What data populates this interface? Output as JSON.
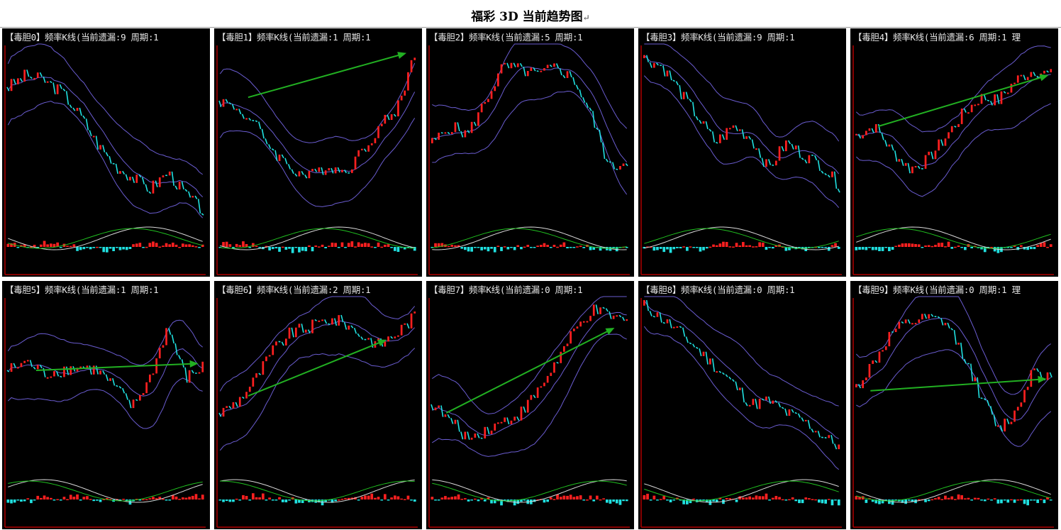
{
  "page": {
    "title": "福彩 3D 当前趋势图",
    "return_mark": "↵"
  },
  "colors": {
    "background": "#000000",
    "axis": "#b00000",
    "candle_up": "#ff2020",
    "candle_down": "#20e0e0",
    "bollinger": "#6a5cd0",
    "trend_arrow": "#22b022",
    "macd_line_white": "#d8d8d8",
    "macd_line_green": "#20c020"
  },
  "chart_data": [
    {
      "type": "candlestick",
      "label": "【毒胆0】频率K线(当前遗漏:9 周期:1",
      "trend": [
        0.78,
        0.85,
        0.82,
        0.75,
        0.62,
        0.45,
        0.32,
        0.25,
        0.18,
        0.28,
        0.15,
        0.05
      ],
      "arrow": null
    },
    {
      "type": "candlestick",
      "label": "【毒胆1】频率K线(当前遗漏:1 周期:1",
      "trend": [
        0.7,
        0.65,
        0.55,
        0.4,
        0.3,
        0.25,
        0.32,
        0.28,
        0.4,
        0.55,
        0.65,
        0.98
      ],
      "arrow": [
        0.15,
        0.72,
        0.95,
        0.98
      ]
    },
    {
      "type": "candlestick",
      "label": "【毒胆2】频率K线(当前遗漏:5 周期:1",
      "trend": [
        0.45,
        0.55,
        0.5,
        0.7,
        0.9,
        0.88,
        0.85,
        0.9,
        0.82,
        0.6,
        0.3,
        0.35
      ],
      "arrow": null
    },
    {
      "type": "candlestick",
      "label": "【毒胆3】频率K线(当前遗漏:9 周期:1",
      "trend": [
        0.95,
        0.9,
        0.75,
        0.6,
        0.45,
        0.55,
        0.48,
        0.3,
        0.45,
        0.38,
        0.32,
        0.2
      ],
      "arrow": null
    },
    {
      "type": "candlestick",
      "label": "【毒胆4】频率K线(当前遗漏:6 周期:1 理",
      "trend": [
        0.5,
        0.55,
        0.4,
        0.3,
        0.35,
        0.48,
        0.62,
        0.72,
        0.7,
        0.82,
        0.88,
        0.85
      ],
      "arrow": [
        0.12,
        0.55,
        0.98,
        0.85
      ]
    },
    {
      "type": "candlestick",
      "label": "【毒胆5】频率K线(当前遗漏:1 周期:1",
      "trend": [
        0.6,
        0.65,
        0.58,
        0.6,
        0.62,
        0.6,
        0.5,
        0.38,
        0.55,
        0.85,
        0.55,
        0.62
      ],
      "arrow": [
        0.15,
        0.6,
        0.97,
        0.64
      ]
    },
    {
      "type": "candlestick",
      "label": "【毒胆6】频率K线(当前遗漏:2 周期:1",
      "trend": [
        0.35,
        0.42,
        0.55,
        0.72,
        0.82,
        0.85,
        0.9,
        0.88,
        0.8,
        0.75,
        0.82,
        0.92
      ],
      "arrow": [
        0.15,
        0.45,
        0.85,
        0.78
      ]
    },
    {
      "type": "candlestick",
      "label": "【毒胆7】频率K线(当前遗漏:0 周期:1",
      "trend": [
        0.4,
        0.3,
        0.2,
        0.25,
        0.3,
        0.35,
        0.48,
        0.65,
        0.82,
        0.95,
        0.92,
        0.88
      ],
      "arrow": [
        0.08,
        0.35,
        0.93,
        0.85
      ]
    },
    {
      "type": "candlestick",
      "label": "【毒胆8】频率K线(当前遗漏:0 周期:1",
      "trend": [
        0.98,
        0.9,
        0.82,
        0.72,
        0.62,
        0.52,
        0.4,
        0.42,
        0.35,
        0.3,
        0.22,
        0.15
      ],
      "arrow": null
    },
    {
      "type": "candlestick",
      "label": "【毒胆9】频率K线(当前遗漏:0 周期:1 理",
      "trend": [
        0.5,
        0.65,
        0.82,
        0.88,
        0.9,
        0.88,
        0.7,
        0.45,
        0.25,
        0.35,
        0.62,
        0.55
      ],
      "arrow": [
        0.08,
        0.48,
        0.97,
        0.55
      ]
    }
  ]
}
